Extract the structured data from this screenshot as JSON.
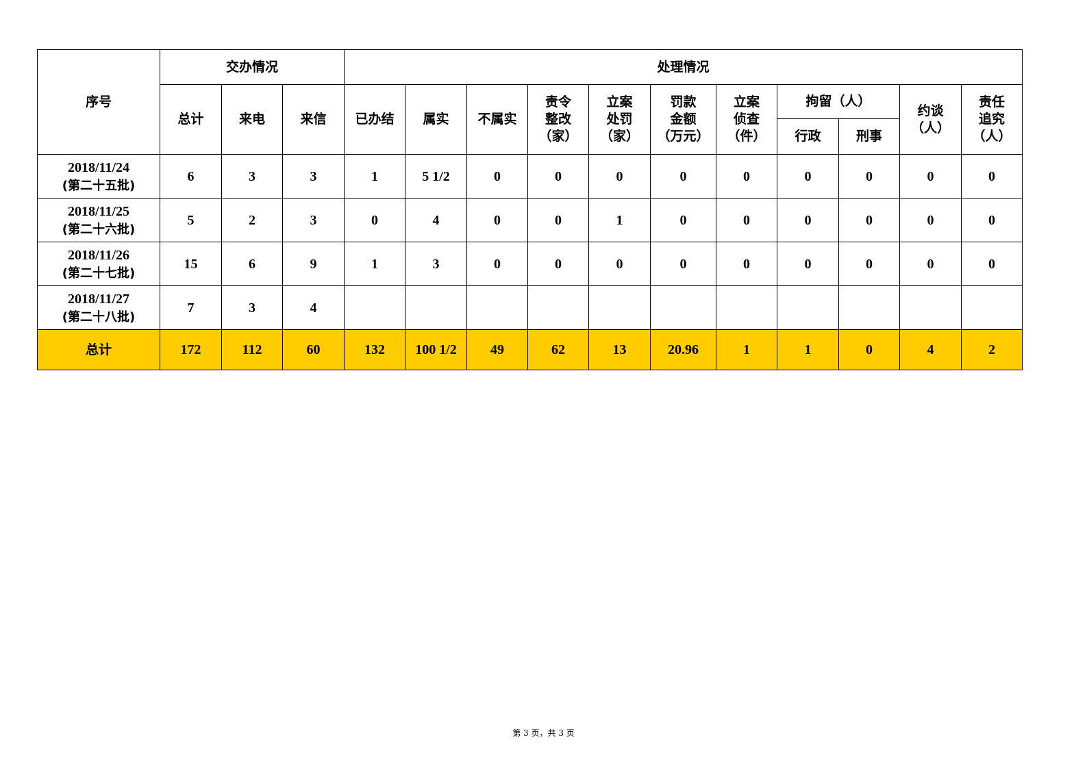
{
  "header": {
    "seq": "序号",
    "group_assigned": "交办情况",
    "group_handled": "处理情况",
    "assigned_cols": [
      "总计",
      "来电",
      "来信"
    ],
    "handled_cols": [
      "已办结",
      "属实",
      "不属实",
      "责令\n整改\n（家）",
      "立案\n处罚\n（家）",
      "罚款\n金额\n（万元）",
      "立案\n侦查\n（件）"
    ],
    "detention": "拘留（人）",
    "detention_cols": [
      "行政",
      "刑事"
    ],
    "tail_cols": [
      "约谈\n（人）",
      "责任\n追究\n（人）"
    ]
  },
  "rows": [
    {
      "date": "2018/11/24",
      "batch": "(第二十五批)",
      "values": [
        "6",
        "3",
        "3",
        "1",
        "5 1/2",
        "0",
        "0",
        "0",
        "0",
        "0",
        "0",
        "0",
        "0",
        "0"
      ]
    },
    {
      "date": "2018/11/25",
      "batch": "(第二十六批)",
      "values": [
        "5",
        "2",
        "3",
        "0",
        "4",
        "0",
        "0",
        "1",
        "0",
        "0",
        "0",
        "0",
        "0",
        "0"
      ]
    },
    {
      "date": "2018/11/26",
      "batch": "(第二十七批)",
      "values": [
        "15",
        "6",
        "9",
        "1",
        "3",
        "0",
        "0",
        "0",
        "0",
        "0",
        "0",
        "0",
        "0",
        "0"
      ]
    },
    {
      "date": "2018/11/27",
      "batch": "(第二十八批)",
      "values": [
        "7",
        "3",
        "4",
        "",
        "",
        "",
        "",
        "",
        "",
        "",
        "",
        "",
        "",
        ""
      ]
    }
  ],
  "total": {
    "label": "总计",
    "values": [
      "172",
      "112",
      "60",
      "132",
      "100 1/2",
      "49",
      "62",
      "13",
      "20.96",
      "1",
      "1",
      "0",
      "4",
      "2"
    ]
  },
  "footer": "第 3 页，共 3 页",
  "colors": {
    "total_row": "#ffcc00"
  }
}
